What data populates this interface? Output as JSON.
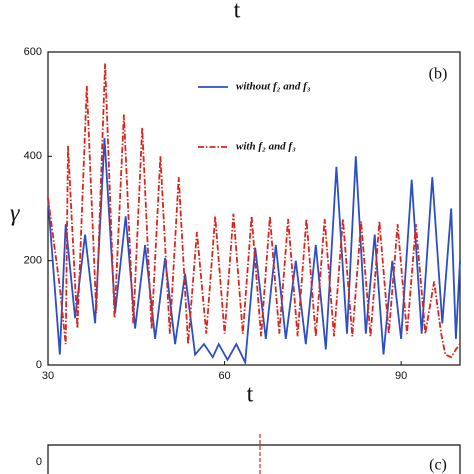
{
  "top_label": "t",
  "chart_data": {
    "type": "line",
    "annotation": "(b)",
    "xlabel": "t",
    "ylabel": "γ",
    "xlim": [
      30,
      100
    ],
    "xticks": [
      30,
      60,
      90
    ],
    "ylim": [
      0,
      600
    ],
    "yticks": [
      0,
      200,
      400,
      600
    ],
    "legend": "upper center",
    "series": [
      {
        "name": "without f₂ and f₃",
        "color": "#2d4fc4",
        "dash": "solid",
        "x": [
          30,
          32,
          33,
          34.6,
          36.3,
          38,
          39.6,
          41.4,
          43.2,
          44.8,
          46.5,
          48.2,
          49.9,
          51.6,
          53.3,
          55,
          56.5,
          58,
          59,
          60.5,
          62,
          63.5,
          65.2,
          67,
          68.7,
          70.4,
          72.1,
          73.8,
          75.5,
          77.2,
          79,
          80.8,
          82.3,
          84,
          85.5,
          87,
          88.5,
          90,
          91.8,
          93.5,
          95.3,
          97,
          98.5,
          99.3,
          100
        ],
        "values": [
          320,
          20,
          270,
          90,
          250,
          80,
          435,
          100,
          285,
          70,
          230,
          50,
          205,
          40,
          175,
          20,
          40,
          15,
          40,
          10,
          40,
          5,
          225,
          50,
          230,
          50,
          200,
          40,
          230,
          30,
          380,
          60,
          400,
          60,
          250,
          20,
          200,
          50,
          355,
          60,
          360,
          80,
          300,
          50,
          200
        ]
      },
      {
        "name": "with f₂ and f₃",
        "color": "#d9261c",
        "dash": "dashdot",
        "x": [
          30,
          32,
          33,
          33.4,
          35,
          36.6,
          38.2,
          39.7,
          41.3,
          42.9,
          44.5,
          46,
          47.6,
          49.1,
          50.7,
          52.2,
          53.8,
          55.3,
          56.9,
          58.4,
          60,
          61.5,
          63.1,
          64.6,
          66.2,
          67.7,
          69.3,
          70.8,
          72.4,
          73.9,
          75.5,
          77,
          78.6,
          80.1,
          81.7,
          83.2,
          84.8,
          86.3,
          87.9,
          89.4,
          91,
          92.5,
          94.1,
          95.6,
          96.8,
          97.5,
          98.5,
          99.3,
          100
        ],
        "values": [
          320,
          150,
          40,
          420,
          70,
          535,
          100,
          578,
          90,
          480,
          80,
          455,
          70,
          400,
          60,
          360,
          40,
          255,
          60,
          285,
          60,
          290,
          60,
          285,
          55,
          285,
          60,
          280,
          55,
          280,
          55,
          280,
          55,
          280,
          55,
          275,
          55,
          275,
          60,
          270,
          60,
          270,
          60,
          160,
          60,
          20,
          15,
          30,
          40
        ]
      }
    ]
  },
  "panel_c": {
    "annotation": "(c)",
    "yticks": [
      0
    ]
  }
}
